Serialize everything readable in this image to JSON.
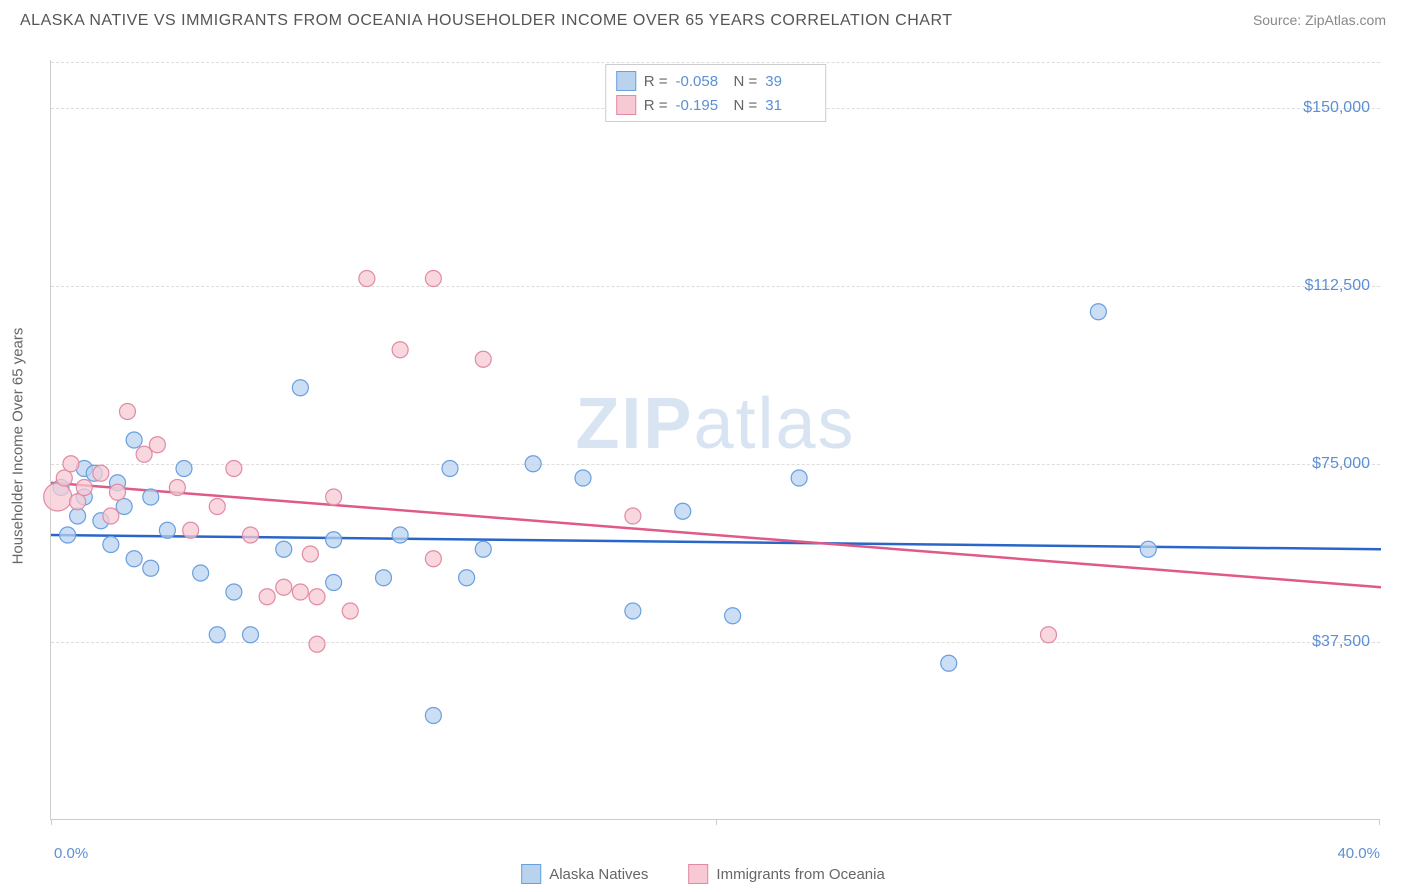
{
  "header": {
    "title": "ALASKA NATIVE VS IMMIGRANTS FROM OCEANIA HOUSEHOLDER INCOME OVER 65 YEARS CORRELATION CHART",
    "source": "Source: ZipAtlas.com"
  },
  "watermark": {
    "zip": "ZIP",
    "atlas": "atlas"
  },
  "chart": {
    "type": "scatter",
    "ylabel": "Householder Income Over 65 years",
    "xlim": [
      0,
      40
    ],
    "ylim": [
      0,
      160000
    ],
    "xticks_labels": {
      "min": "0.0%",
      "max": "40.0%"
    },
    "yticks": [
      37500,
      75000,
      112500,
      150000
    ],
    "ytick_labels": [
      "$37,500",
      "$75,000",
      "$112,500",
      "$150,000"
    ],
    "background_color": "#ffffff",
    "grid_color": "#dddddd",
    "axis_color": "#cccccc",
    "tick_label_color": "#5b8fd6",
    "series": [
      {
        "name": "Alaska Natives",
        "swatch_fill": "#b9d3ef",
        "swatch_stroke": "#6a9fe0",
        "point_fill": "#b9d3ef",
        "point_stroke": "#6a9fe0",
        "line_color": "#2a66c9",
        "line_width": 2.5,
        "point_radius": 8,
        "point_opacity": 0.75,
        "stats": {
          "R": "-0.058",
          "N": "39"
        },
        "trend": {
          "y_at_xmin": 60000,
          "y_at_xmax": 57000
        },
        "points": [
          {
            "x": 0.3,
            "y": 70000
          },
          {
            "x": 0.5,
            "y": 60000
          },
          {
            "x": 0.8,
            "y": 64000
          },
          {
            "x": 1.0,
            "y": 74000
          },
          {
            "x": 1.0,
            "y": 68000
          },
          {
            "x": 1.3,
            "y": 73000
          },
          {
            "x": 1.5,
            "y": 63000
          },
          {
            "x": 1.8,
            "y": 58000
          },
          {
            "x": 2.0,
            "y": 71000
          },
          {
            "x": 2.2,
            "y": 66000
          },
          {
            "x": 2.5,
            "y": 55000
          },
          {
            "x": 2.5,
            "y": 80000
          },
          {
            "x": 3.0,
            "y": 68000
          },
          {
            "x": 3.0,
            "y": 53000
          },
          {
            "x": 3.5,
            "y": 61000
          },
          {
            "x": 4.0,
            "y": 74000
          },
          {
            "x": 4.5,
            "y": 52000
          },
          {
            "x": 5.0,
            "y": 39000
          },
          {
            "x": 5.5,
            "y": 48000
          },
          {
            "x": 6.0,
            "y": 39000
          },
          {
            "x": 7.0,
            "y": 57000
          },
          {
            "x": 7.5,
            "y": 91000
          },
          {
            "x": 8.5,
            "y": 59000
          },
          {
            "x": 8.5,
            "y": 50000
          },
          {
            "x": 10.0,
            "y": 51000
          },
          {
            "x": 10.5,
            "y": 60000
          },
          {
            "x": 11.5,
            "y": 22000
          },
          {
            "x": 12.0,
            "y": 74000
          },
          {
            "x": 12.5,
            "y": 51000
          },
          {
            "x": 13.0,
            "y": 57000
          },
          {
            "x": 14.5,
            "y": 75000
          },
          {
            "x": 16.0,
            "y": 72000
          },
          {
            "x": 17.5,
            "y": 44000
          },
          {
            "x": 19.0,
            "y": 65000
          },
          {
            "x": 20.5,
            "y": 43000
          },
          {
            "x": 22.5,
            "y": 72000
          },
          {
            "x": 27.0,
            "y": 33000
          },
          {
            "x": 31.5,
            "y": 107000
          },
          {
            "x": 33.0,
            "y": 57000
          }
        ]
      },
      {
        "name": "Immigrants from Oceania",
        "swatch_fill": "#f6c9d4",
        "swatch_stroke": "#e38aa3",
        "point_fill": "#f6c9d4",
        "point_stroke": "#e38aa3",
        "line_color": "#e05a87",
        "line_width": 2.5,
        "point_radius": 8,
        "point_opacity": 0.75,
        "stats": {
          "R": "-0.195",
          "N": "31"
        },
        "trend": {
          "y_at_xmin": 71000,
          "y_at_xmax": 49000
        },
        "points": [
          {
            "x": 0.2,
            "y": 68000,
            "r": 14
          },
          {
            "x": 0.4,
            "y": 72000
          },
          {
            "x": 0.6,
            "y": 75000
          },
          {
            "x": 0.8,
            "y": 67000
          },
          {
            "x": 1.0,
            "y": 70000
          },
          {
            "x": 1.5,
            "y": 73000
          },
          {
            "x": 1.8,
            "y": 64000
          },
          {
            "x": 2.0,
            "y": 69000
          },
          {
            "x": 2.3,
            "y": 86000
          },
          {
            "x": 2.8,
            "y": 77000
          },
          {
            "x": 3.2,
            "y": 79000
          },
          {
            "x": 3.8,
            "y": 70000
          },
          {
            "x": 4.2,
            "y": 61000
          },
          {
            "x": 5.0,
            "y": 66000
          },
          {
            "x": 5.5,
            "y": 74000
          },
          {
            "x": 6.0,
            "y": 60000
          },
          {
            "x": 6.5,
            "y": 47000
          },
          {
            "x": 7.0,
            "y": 49000
          },
          {
            "x": 7.5,
            "y": 48000
          },
          {
            "x": 7.8,
            "y": 56000
          },
          {
            "x": 8.0,
            "y": 37000
          },
          {
            "x": 8.0,
            "y": 47000
          },
          {
            "x": 8.5,
            "y": 68000
          },
          {
            "x": 9.0,
            "y": 44000
          },
          {
            "x": 9.5,
            "y": 114000
          },
          {
            "x": 10.5,
            "y": 99000
          },
          {
            "x": 11.5,
            "y": 114000
          },
          {
            "x": 11.5,
            "y": 55000
          },
          {
            "x": 13.0,
            "y": 97000
          },
          {
            "x": 17.5,
            "y": 64000
          },
          {
            "x": 30.0,
            "y": 39000
          }
        ]
      }
    ],
    "bottom_legend": [
      {
        "label": "Alaska Natives"
      },
      {
        "label": "Immigrants from Oceania"
      }
    ],
    "stats_legend_labels": {
      "R": "R =",
      "N": "N ="
    }
  }
}
